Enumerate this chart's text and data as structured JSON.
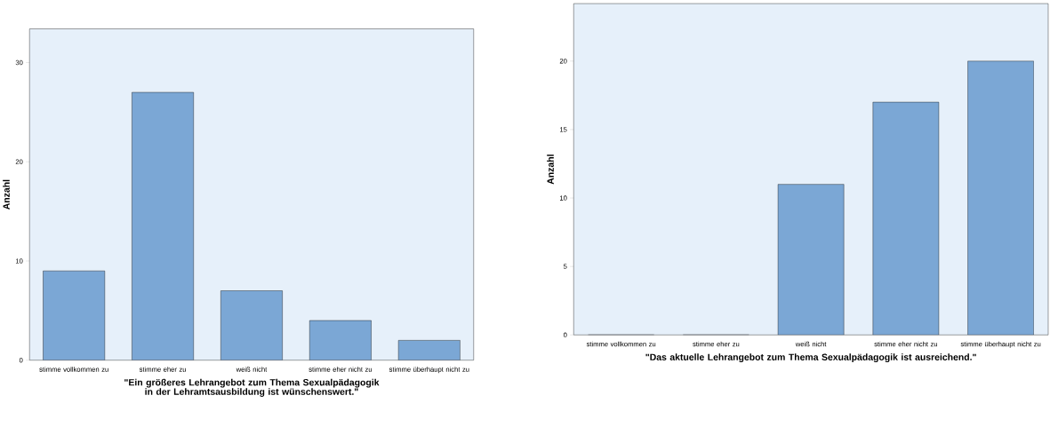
{
  "chart_data": [
    {
      "type": "bar",
      "xlabel": "**\"Ein größeres Lehrangebot zum Thema Sexualpädagogik in der Lehramtsausbildung ist wünschenswert.\"**",
      "ylabel": "**Anzahl**",
      "categories": [
        "stimme vollkommen zu",
        "stimme eher zu",
        "weiß nicht",
        "stimme eher nicht zu",
        "stimme überhaupt nicht zu"
      ],
      "values": [
        9,
        27,
        7,
        4,
        2
      ],
      "color": "#7ba7d5",
      "ylim": [
        0,
        33.4
      ],
      "yticks": [
        0,
        10,
        20,
        30
      ],
      "grid": false
    },
    {
      "type": "bar",
      "xlabel": "**\"Das aktuelle Lehrangebot zum Thema Sexualpädagogik ist ausreichend.\"**",
      "ylabel": "**Anzahl**",
      "categories": [
        "stimme vollkommen zu",
        "stimme eher zu",
        "weiß nicht",
        "stimme eher nicht zu",
        "stimme überhaupt nicht zu"
      ],
      "values": [
        0,
        0,
        11,
        17,
        20
      ],
      "color": "#7ba7d5",
      "ylim": [
        0,
        24.2
      ],
      "yticks": [
        0,
        5,
        10,
        15,
        20
      ],
      "grid": false
    }
  ]
}
